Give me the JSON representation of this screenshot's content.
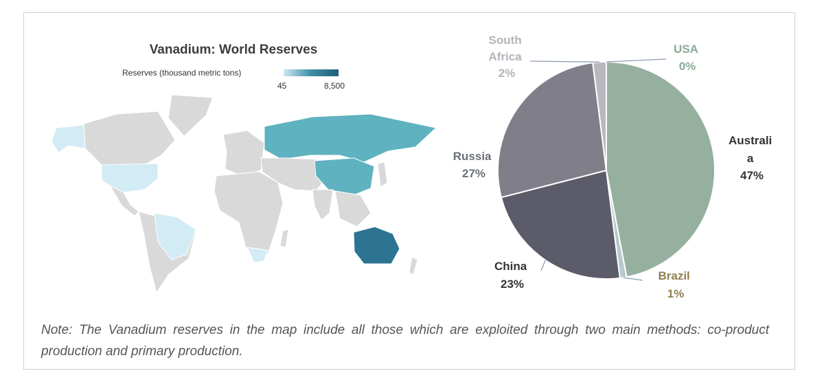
{
  "map": {
    "title": "Vanadium: World Reserves",
    "legend_label": "Reserves (thousand metric tons)",
    "legend_min": "45",
    "legend_max": "8,500",
    "colors": {
      "base": "#d9d9d9",
      "low": "#d3ebf4",
      "mid": "#5fb2c0",
      "high": "#2c7492"
    }
  },
  "chart_data": {
    "type": "pie",
    "slices": [
      {
        "label": "USA",
        "value": 0,
        "display": "0%",
        "color": "#7f8a99",
        "label_color": "#8aaa96"
      },
      {
        "label": "Australi a",
        "value": 47,
        "display": "47%",
        "color": "#95b09e",
        "label_color": "#333333"
      },
      {
        "label": "Brazil",
        "value": 1,
        "display": "1%",
        "color": "#b7c8cf",
        "label_color": "#8f7f50"
      },
      {
        "label": "China",
        "value": 23,
        "display": "23%",
        "color": "#5b5b69",
        "label_color": "#333333"
      },
      {
        "label": "Russia",
        "value": 27,
        "display": "27%",
        "color": "#7f7e89",
        "label_color": "#6b6f7a"
      },
      {
        "label": "South Africa",
        "value": 2,
        "display": "2%",
        "color": "#b8b8bf",
        "label_color": "#b1b4bb"
      }
    ]
  },
  "note": "Note: The Vanadium reserves in the map include all those which are exploited through two main methods: co-product production and primary production."
}
